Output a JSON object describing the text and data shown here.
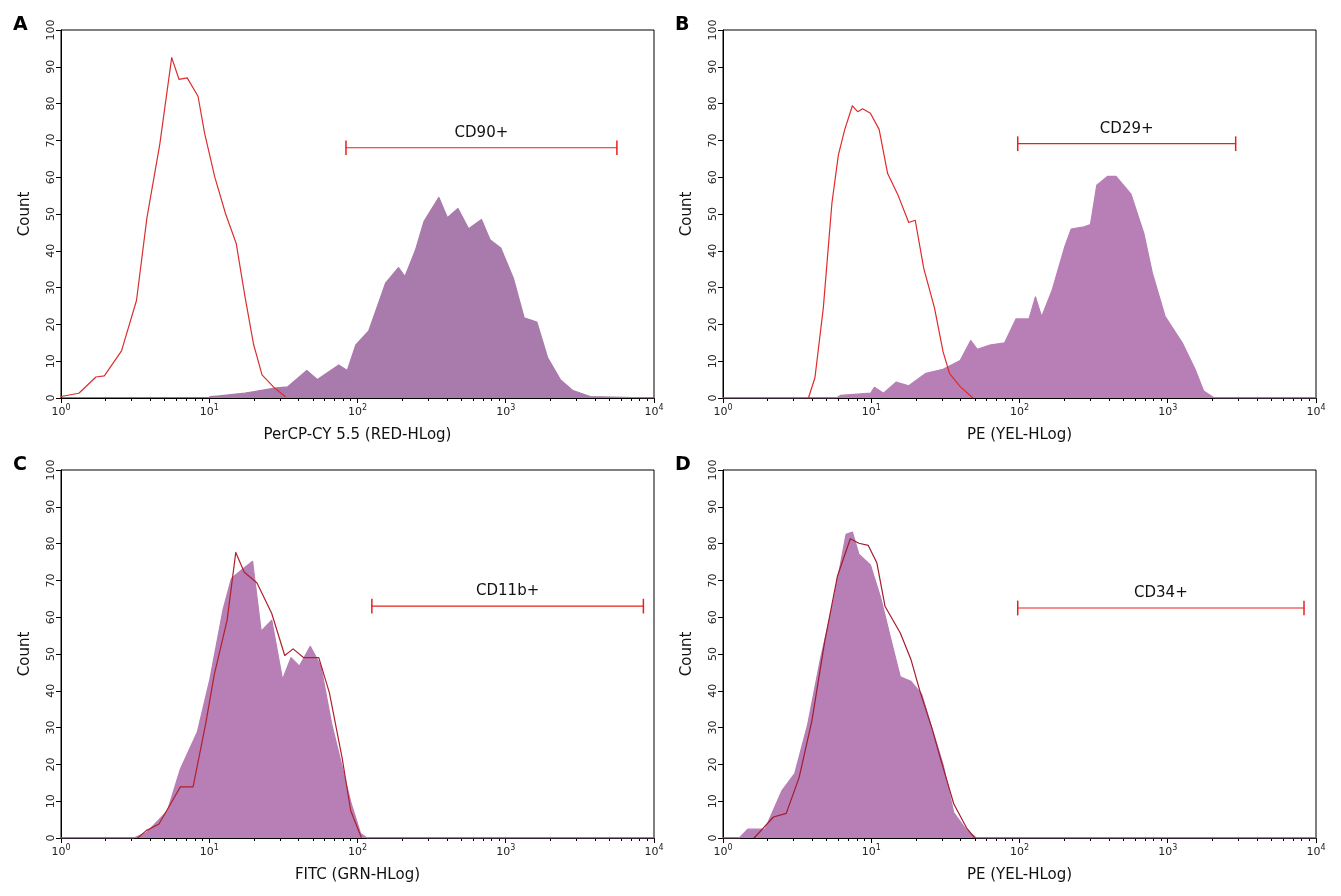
{
  "chart_data": [
    {
      "type": "area",
      "title": "A",
      "xlabel": "PerCP-CY 5.5 (RED-HLog)",
      "ylabel": "Count",
      "log": "x",
      "xlim": [
        1,
        10000
      ],
      "xticks": [
        {
          "value": 1,
          "label": "10$^{0}$"
        },
        {
          "value": 10,
          "label": "10$^{1}$"
        },
        {
          "value": 100,
          "label": "10$^{2}$"
        },
        {
          "value": 1000,
          "label": "10$^{3}$"
        },
        {
          "value": 10000,
          "label": "10$^{4}$"
        }
      ],
      "ylim": [
        0,
        100
      ],
      "yticks": [
        0,
        10,
        20,
        30,
        40,
        50,
        60,
        70,
        80,
        90,
        100
      ],
      "series": [
        {
          "color": "#a97aac",
          "x": [
            10.1,
            11.7,
            17.4,
            27.6,
            33.7,
            45.5,
            53.7,
            74.7,
            85.3,
            97.4,
            119,
            155,
            189,
            209,
            246,
            281,
            354,
            404,
            476,
            562,
            686,
            783,
            924,
            1127,
            1330,
            1622,
            1914,
            2334,
            2844,
            3715,
            10000
          ],
          "values": [
            0.4,
            0.6,
            1.3,
            2.7,
            3,
            7.5,
            5,
            9,
            7.5,
            14.4,
            18.2,
            31.3,
            35.4,
            33,
            40.2,
            48,
            54.5,
            49,
            51.5,
            46,
            48.5,
            43,
            40.8,
            32.5,
            21.8,
            20.6,
            11,
            5,
            2,
            0.4,
            0
          ]
        },
        {
          "type": "line",
          "color": "#d83030",
          "x": [
            1,
            1.32,
            1.72,
            1.96,
            2.56,
            3.23,
            3.8,
            4.64,
            5.58,
            6.25,
            7.1,
            8.4,
            9.3,
            10.9,
            12.9,
            15.2,
            17.4,
            19.9,
            22.7,
            27.6,
            32.5
          ],
          "values": [
            0.4,
            1.3,
            5.7,
            6,
            12.8,
            26.5,
            49,
            69,
            92.5,
            86.6,
            87,
            82,
            72,
            60,
            50,
            42,
            27.7,
            14.6,
            6.3,
            2.7,
            0.4
          ]
        },
        {
          "type": "line",
          "color": "#e8211c",
          "x": [
            83.6,
            5620
          ],
          "values": [
            68,
            68
          ],
          "errors": [
            2,
            2
          ]
        }
      ],
      "annotations": [
        "CD90+"
      ]
    },
    {
      "type": "area",
      "title": "B",
      "xlabel": "PE (YEL-HLog)",
      "ylabel": "Count",
      "log": "x",
      "xlim": [
        1,
        10000
      ],
      "xticks": [
        {
          "value": 1,
          "label": "10$^{0}$"
        },
        {
          "value": 10,
          "label": "10$^{1}$"
        },
        {
          "value": 100,
          "label": "10$^{2}$"
        },
        {
          "value": 1000,
          "label": "10$^{3}$"
        },
        {
          "value": 10000,
          "label": "10$^{4}$"
        }
      ],
      "ylim": [
        0,
        100
      ],
      "yticks": [
        0,
        10,
        20,
        30,
        40,
        50,
        60,
        70,
        80,
        90,
        100
      ],
      "series": [
        {
          "color": "#b77fb5",
          "x": [
            1,
            5.8,
            6.2,
            9.9,
            10.5,
            12.1,
            14.7,
            17.9,
            23.4,
            30.5,
            39.8,
            46.9,
            51.9,
            63.1,
            79.4,
            94.8,
            116,
            128,
            141,
            166,
            202,
            223,
            272,
            301,
            332,
            392,
            448,
            565,
            690,
            787,
            961,
            1253,
            1529,
            1746,
            2062,
            10000
          ],
          "values": [
            0,
            0,
            0.7,
            1.3,
            2.9,
            1.3,
            4.3,
            3.3,
            6.7,
            7.8,
            10.2,
            15.6,
            13.2,
            14.4,
            15,
            21.5,
            21.5,
            27.5,
            22.1,
            29.3,
            41.1,
            45.9,
            46.5,
            47.1,
            57.8,
            60.2,
            60.2,
            55.4,
            44.7,
            34,
            22.1,
            15,
            7.8,
            1.9,
            0,
            0
          ]
        },
        {
          "type": "line",
          "color": "#e02a2a",
          "x": [
            3.77,
            4.17,
            4.75,
            5.43,
            6,
            6.63,
            7.46,
            8.1,
            8.75,
            9.87,
            11.3,
            12.9,
            15.2,
            17.9,
            19.8,
            22.6,
            26.7,
            30.5,
            33.7,
            39.8,
            48.5
          ],
          "values": [
            0,
            5.5,
            24.5,
            53,
            66,
            73,
            79.4,
            77.8,
            78.6,
            77.4,
            73,
            61,
            55,
            47.7,
            48.3,
            35.2,
            24.5,
            12.6,
            6.7,
            3.1,
            0
          ]
        },
        {
          "type": "line",
          "color": "#e8211c",
          "x": [
            97.3,
            2872
          ],
          "values": [
            69.1,
            69.1
          ],
          "errors": [
            2,
            2
          ]
        }
      ],
      "annotations": [
        "CD29+"
      ]
    },
    {
      "type": "area",
      "title": "C",
      "xlabel": "FITC (GRN-HLog)",
      "ylabel": "Count",
      "log": "x",
      "xlim": [
        1,
        10000
      ],
      "xticks": [
        {
          "value": 1,
          "label": "10$^{0}$"
        },
        {
          "value": 10,
          "label": "10$^{1}$"
        },
        {
          "value": 100,
          "label": "10$^{2}$"
        },
        {
          "value": 1000,
          "label": "10$^{3}$"
        },
        {
          "value": 10000,
          "label": "10$^{4}$"
        }
      ],
      "ylim": [
        0,
        100
      ],
      "yticks": [
        0,
        10,
        20,
        30,
        40,
        50,
        60,
        70,
        80,
        90,
        100
      ],
      "series": [
        {
          "color": "#b77fb5",
          "x": [
            1,
            3.08,
            3.76,
            5.23,
            6.38,
            8.31,
            10.1,
            12.4,
            14.1,
            16.6,
            19.6,
            22.4,
            26.4,
            31.2,
            35.6,
            40.6,
            48,
            56.6,
            66.8,
            78.8,
            90,
            105,
            116,
            10000
          ],
          "values": [
            0,
            0,
            1.4,
            7.4,
            18.7,
            28.8,
            43.2,
            62.1,
            70.5,
            72.9,
            75.2,
            56.2,
            59.2,
            43.1,
            49,
            46.7,
            52.1,
            46.7,
            31.2,
            19.3,
            9.8,
            1.2,
            0,
            0
          ]
        },
        {
          "type": "line",
          "color": "#b0202c",
          "x": [
            3.29,
            3.76,
            4.58,
            5.58,
            6.38,
            7.78,
            9.48,
            10.8,
            13.2,
            15.1,
            17.2,
            21,
            26.4,
            32.3,
            36.8,
            43.4,
            54.8,
            64.6,
            78.8,
            90,
            106
          ],
          "values": [
            0,
            2,
            3.8,
            9.8,
            13.9,
            13.9,
            31.2,
            44.3,
            59.2,
            77.6,
            72.3,
            69.3,
            61,
            49.6,
            51.4,
            49,
            49,
            39.5,
            21.7,
            7.4,
            0.2
          ]
        },
        {
          "type": "line",
          "color": "#e8211c",
          "x": [
            125,
            8480
          ],
          "values": [
            63,
            63
          ],
          "errors": [
            2,
            2
          ]
        }
      ],
      "annotations": [
        "CD11b+"
      ]
    },
    {
      "type": "area",
      "title": "D",
      "xlabel": "PE (YEL-HLog)",
      "ylabel": "Count",
      "log": "x",
      "xlim": [
        1,
        10000
      ],
      "xticks": [
        {
          "value": 1,
          "label": "10$^{0}$"
        },
        {
          "value": 10,
          "label": "10$^{1}$"
        },
        {
          "value": 100,
          "label": "10$^{2}$"
        },
        {
          "value": 1000,
          "label": "10$^{3}$"
        },
        {
          "value": 10000,
          "label": "10$^{4}$"
        }
      ],
      "ylim": [
        0,
        100
      ],
      "yticks": [
        0,
        10,
        20,
        30,
        40,
        50,
        60,
        70,
        80,
        90,
        100
      ],
      "series": [
        {
          "color": "#b77fb5",
          "x": [
            1,
            1.29,
            1.47,
            1.92,
            2.5,
            3.05,
            3.72,
            4.54,
            5.55,
            6.76,
            7.47,
            8.25,
            9.87,
            11.6,
            13.7,
            15.7,
            18.5,
            21.9,
            25.8,
            30.5,
            36,
            44,
            51.2,
            10000
          ],
          "values": [
            0,
            0,
            2.4,
            2.4,
            12.9,
            17.6,
            30.7,
            48.6,
            64,
            82.5,
            83.1,
            77.1,
            74.2,
            65.2,
            53.3,
            43.8,
            42.6,
            39,
            29.5,
            20,
            6.9,
            2.1,
            0,
            0
          ]
        },
        {
          "type": "line",
          "color": "#a01c30",
          "x": [
            1.62,
            2.19,
            2.67,
            3.26,
            3.98,
            4.85,
            5.92,
            7.22,
            8.25,
            9.55,
            10.9,
            12.4,
            15.7,
            18.5,
            21.2,
            25.8,
            29.5,
            36,
            44,
            50
          ],
          "values": [
            0,
            5.7,
            6.7,
            16.4,
            31.9,
            53.3,
            71.2,
            81.3,
            80.1,
            79.5,
            74.8,
            62.9,
            55.7,
            48.6,
            40.2,
            29.5,
            21.2,
            9.3,
            2.7,
            0
          ]
        },
        {
          "type": "line",
          "color": "#e8211c",
          "x": [
            97.3,
            8300
          ],
          "values": [
            62.5,
            62.5
          ],
          "errors": [
            2,
            2
          ]
        }
      ],
      "annotations": [
        "CD34+"
      ]
    }
  ]
}
